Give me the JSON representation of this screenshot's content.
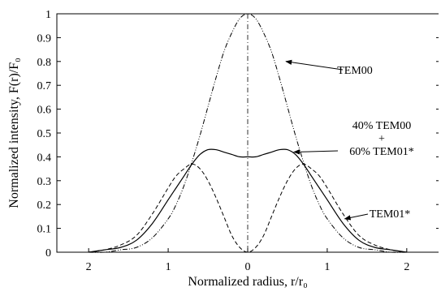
{
  "chart_data": {
    "type": "line",
    "xlabel": "Normalized radius, r/r₀",
    "ylabel": "Normalized intensity, F(r)/F₀",
    "xlim": [
      -2.4,
      2.4
    ],
    "ylim": [
      0,
      1
    ],
    "x_ticks": [
      {
        "value": -2,
        "label": "2"
      },
      {
        "value": -1,
        "label": "1"
      },
      {
        "value": 0,
        "label": "0"
      },
      {
        "value": 1,
        "label": "1"
      },
      {
        "value": 2,
        "label": "2"
      }
    ],
    "y_ticks": [
      {
        "value": 0,
        "label": "0"
      },
      {
        "value": 0.1,
        "label": "0.1"
      },
      {
        "value": 0.2,
        "label": "0.2"
      },
      {
        "value": 0.3,
        "label": "0.3"
      },
      {
        "value": 0.4,
        "label": "0.4"
      },
      {
        "value": 0.5,
        "label": "0.5"
      },
      {
        "value": 0.6,
        "label": "0.6"
      },
      {
        "value": 0.7,
        "label": "0.7"
      },
      {
        "value": 0.8,
        "label": "0.8"
      },
      {
        "value": 0.9,
        "label": "0.9"
      },
      {
        "value": 1,
        "label": "1"
      }
    ],
    "grid": false,
    "center_line": {
      "x": 0,
      "style": "dash-dot"
    },
    "series": [
      {
        "name": "TEM00",
        "style": "dash-dot-dot",
        "x": [
          -2,
          -1.8,
          -1.6,
          -1.4,
          -1.2,
          -1,
          -0.9,
          -0.8,
          -0.7,
          -0.6,
          -0.5,
          -0.4,
          -0.3,
          -0.2,
          -0.1,
          0,
          0.1,
          0.2,
          0.3,
          0.4,
          0.5,
          0.6,
          0.7,
          0.8,
          0.9,
          1,
          1.2,
          1.4,
          1.6,
          1.8,
          2
        ],
        "y": [
          0.0,
          0.0,
          0.01,
          0.02,
          0.06,
          0.14,
          0.2,
          0.28,
          0.38,
          0.49,
          0.61,
          0.73,
          0.84,
          0.92,
          0.98,
          1.0,
          0.98,
          0.92,
          0.84,
          0.73,
          0.61,
          0.49,
          0.38,
          0.28,
          0.2,
          0.14,
          0.06,
          0.02,
          0.01,
          0.0,
          0.0
        ]
      },
      {
        "name": "TEM01*",
        "style": "dashed",
        "x": [
          -2,
          -1.8,
          -1.6,
          -1.4,
          -1.2,
          -1,
          -0.9,
          -0.8,
          -0.7,
          -0.6,
          -0.5,
          -0.4,
          -0.3,
          -0.2,
          -0.1,
          0,
          0.1,
          0.2,
          0.3,
          0.4,
          0.5,
          0.6,
          0.7,
          0.8,
          0.9,
          1,
          1.2,
          1.4,
          1.6,
          1.8,
          2
        ],
        "y": [
          0.0,
          0.01,
          0.03,
          0.07,
          0.16,
          0.27,
          0.32,
          0.35,
          0.37,
          0.35,
          0.3,
          0.23,
          0.15,
          0.07,
          0.02,
          0.0,
          0.02,
          0.07,
          0.15,
          0.23,
          0.3,
          0.35,
          0.37,
          0.35,
          0.32,
          0.27,
          0.16,
          0.07,
          0.03,
          0.01,
          0.0
        ]
      },
      {
        "name": "40% TEM00 + 60% TEM01*",
        "style": "solid",
        "x": [
          -2,
          -1.8,
          -1.6,
          -1.4,
          -1.2,
          -1,
          -0.9,
          -0.8,
          -0.7,
          -0.6,
          -0.5,
          -0.4,
          -0.3,
          -0.2,
          -0.1,
          0,
          0.1,
          0.2,
          0.3,
          0.4,
          0.5,
          0.6,
          0.7,
          0.8,
          0.9,
          1,
          1.2,
          1.4,
          1.6,
          1.8,
          2
        ],
        "y": [
          0.0,
          0.01,
          0.02,
          0.05,
          0.12,
          0.22,
          0.27,
          0.32,
          0.37,
          0.41,
          0.43,
          0.43,
          0.42,
          0.41,
          0.4,
          0.4,
          0.4,
          0.41,
          0.42,
          0.43,
          0.43,
          0.41,
          0.37,
          0.32,
          0.27,
          0.22,
          0.12,
          0.05,
          0.02,
          0.01,
          0.0
        ]
      }
    ],
    "annotations": [
      {
        "name": "label-tem00",
        "lines": [
          "TEM00"
        ],
        "target": {
          "x": 0.48,
          "y": 0.8
        }
      },
      {
        "name": "label-mixed",
        "lines": [
          "40% TEM00",
          "+",
          "60% TEM01*"
        ],
        "target": {
          "x": 0.58,
          "y": 0.42
        }
      },
      {
        "name": "label-tem01",
        "lines": [
          "TEM01*"
        ],
        "target": {
          "x": 1.22,
          "y": 0.14
        }
      }
    ]
  }
}
